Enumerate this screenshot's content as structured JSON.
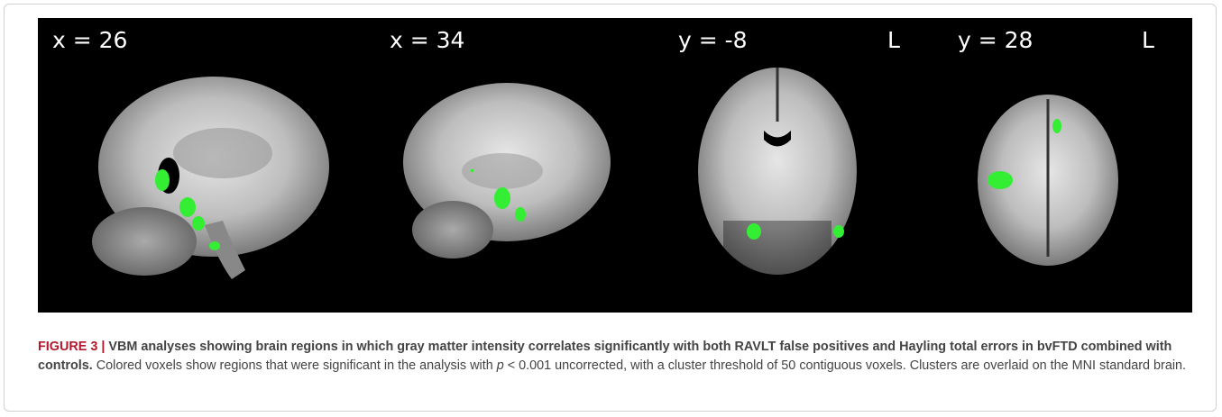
{
  "figure": {
    "panels": [
      {
        "label": "x = 26"
      },
      {
        "label": "x = 34"
      },
      {
        "label": "y = -8",
        "side": "L"
      },
      {
        "label": "y = 28",
        "side": "L"
      }
    ]
  },
  "caption": {
    "label": "FIGURE 3 |",
    "title": "VBM analyses showing brain regions in which gray matter intensity correlates significantly with both RAVLT false positives and Hayling total errors in bvFTD combined with controls.",
    "text_before": "Colored voxels show regions that were significant in the analysis with",
    "italic": "p",
    "text_after": "< 0.001 uncorrected, with a cluster threshold of 50 contiguous voxels. Clusters are overlaid on the MNI standard brain."
  }
}
